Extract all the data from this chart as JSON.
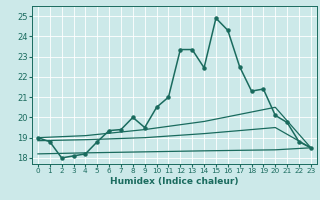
{
  "xlabel": "Humidex (Indice chaleur)",
  "xlim": [
    -0.5,
    23.5
  ],
  "ylim": [
    17.7,
    25.5
  ],
  "xticks": [
    0,
    1,
    2,
    3,
    4,
    5,
    6,
    7,
    8,
    9,
    10,
    11,
    12,
    13,
    14,
    15,
    16,
    17,
    18,
    19,
    20,
    21,
    22,
    23
  ],
  "yticks": [
    18,
    19,
    20,
    21,
    22,
    23,
    24,
    25
  ],
  "bg_color": "#cce9e9",
  "line_color": "#1a6b5e",
  "grid_color": "#ffffff",
  "main_x": [
    0,
    1,
    2,
    3,
    4,
    5,
    6,
    7,
    8,
    9,
    10,
    11,
    12,
    13,
    14,
    15,
    16,
    17,
    18,
    19,
    20,
    21,
    22,
    23
  ],
  "main_y": [
    19.0,
    18.8,
    18.0,
    18.1,
    18.2,
    18.8,
    19.35,
    19.4,
    20.0,
    19.5,
    20.5,
    21.0,
    23.35,
    23.35,
    22.45,
    24.9,
    24.3,
    22.5,
    21.3,
    21.4,
    20.1,
    19.75,
    18.8,
    18.5
  ],
  "flat_x": [
    0,
    4,
    9,
    14,
    20,
    23
  ],
  "flat_y": [
    18.2,
    18.25,
    18.3,
    18.35,
    18.4,
    18.5
  ],
  "lower_x": [
    0,
    4,
    9,
    14,
    20,
    23
  ],
  "lower_y": [
    18.85,
    18.9,
    19.0,
    19.2,
    19.5,
    18.5
  ],
  "upper_x": [
    0,
    4,
    9,
    14,
    20,
    23
  ],
  "upper_y": [
    19.0,
    19.1,
    19.4,
    19.8,
    20.5,
    18.5
  ]
}
